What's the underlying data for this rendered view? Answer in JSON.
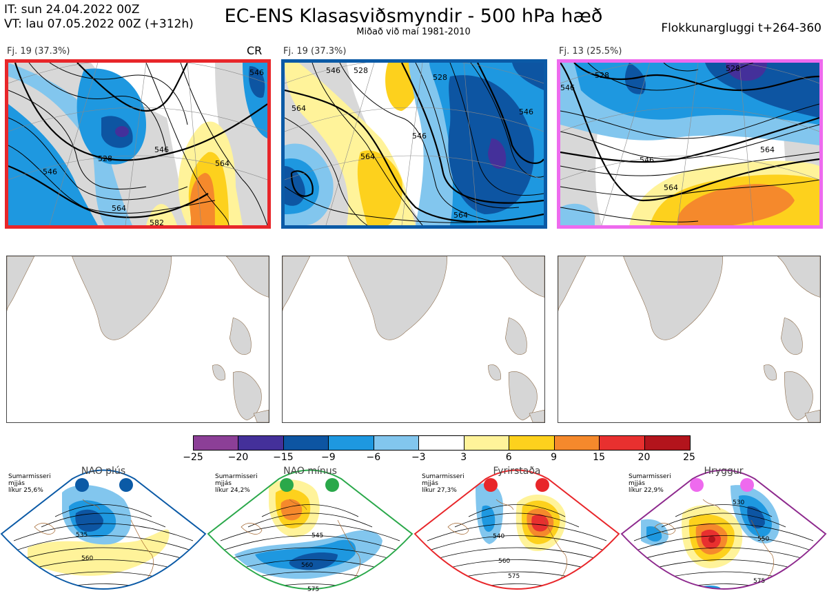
{
  "header": {
    "it_line": "IT: sun 24.04.2022 00Z",
    "vt_line": "VT: lau 07.05.2022 00Z  (+312h)",
    "title": "EC-ENS Klasasviðsmyndir - 500 hPa hæð",
    "subtitle": "Miðað við maí 1981-2010",
    "window": "Flokkunargluggi t+264-360"
  },
  "panels": [
    {
      "label": "Fj. 19 (37.3%)",
      "tag": "CR",
      "border_color": "#e8262a",
      "contours": [
        "546",
        "528",
        "546",
        "564",
        "564",
        "582",
        "546"
      ]
    },
    {
      "label": "Fj. 19 (37.3%)",
      "tag": "",
      "border_color": "#0b5aa6",
      "contours": [
        "546",
        "528",
        "564",
        "528",
        "546",
        "564",
        "564",
        "546"
      ]
    },
    {
      "label": "Fj. 13 (25.5%)",
      "tag": "",
      "border_color": "#ee6aee",
      "contours": [
        "528",
        "546",
        "564",
        "546",
        "564",
        "528"
      ]
    }
  ],
  "colorbar": {
    "colors": [
      "#8c3f97",
      "#44309a",
      "#0d55a2",
      "#1e98e0",
      "#82c6ee",
      "#ffffff",
      "#fff39a",
      "#fdd11d",
      "#f5892c",
      "#e8302f",
      "#b3141c"
    ],
    "ticks": [
      "−25",
      "−20",
      "−15",
      "−9",
      "−6",
      "−3",
      "3",
      "6",
      "9",
      "15",
      "20",
      "25"
    ]
  },
  "regimes": [
    {
      "name": "NAO plús",
      "season": "Sumarmisseri",
      "measure": "mjjás",
      "prob": "líkur 25,6%",
      "color": "#0b5aa6",
      "contours": [
        "535",
        "560"
      ]
    },
    {
      "name": "NAO mínus",
      "season": "Sumarmisseri",
      "measure": "mjjás",
      "prob": "líkur 24,2%",
      "color": "#2aa84a",
      "contours": [
        "545",
        "560",
        "575"
      ]
    },
    {
      "name": "Fyrirstaða",
      "season": "Sumarmisseri",
      "measure": "mjjás",
      "prob": "líkur 27,3%",
      "color": "#e8262a",
      "contours": [
        "540",
        "560",
        "575"
      ]
    },
    {
      "name": "Hryggur",
      "season": "Sumarmisseri",
      "measure": "mjjás",
      "prob": "líkur 22,9%",
      "color": "#ee6aee",
      "contours": [
        "530",
        "550",
        "575"
      ]
    }
  ]
}
